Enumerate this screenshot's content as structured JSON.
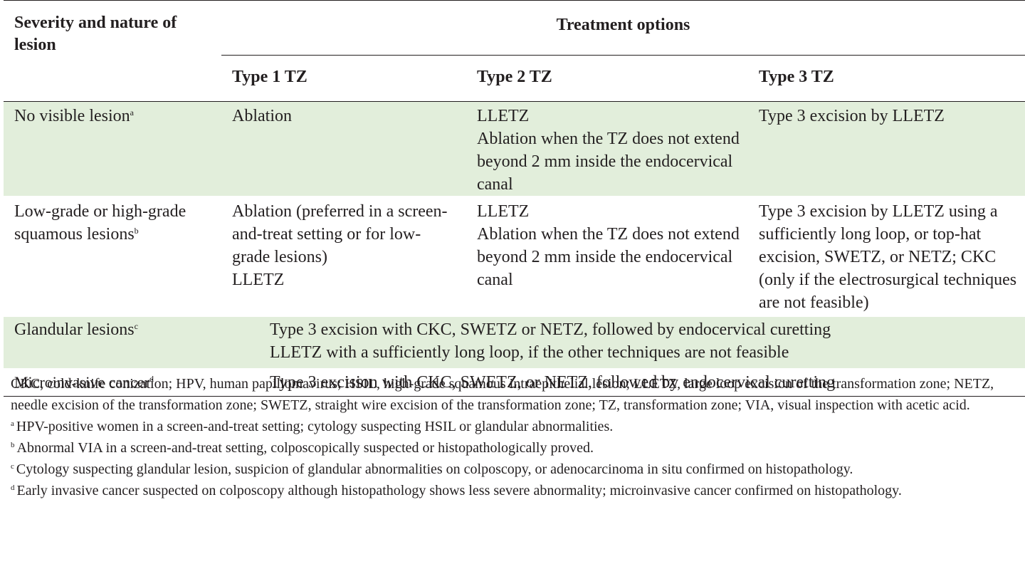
{
  "header": {
    "severity": "Severity and nature of lesion",
    "treatment": "Treatment options",
    "type1": "Type 1 TZ",
    "type2": "Type 2 TZ",
    "type3": "Type 3 TZ"
  },
  "rows": [
    {
      "lesion": "No visible lesion",
      "mark": "a",
      "type1": [
        "Ablation"
      ],
      "type2": [
        "LLETZ",
        "Ablation when the TZ does not extend beyond 2 mm inside the endocervical canal"
      ],
      "type3": [
        "Type 3 excision by LLETZ"
      ]
    },
    {
      "lesion": "Low-grade or high-grade squamous lesions",
      "mark": "b",
      "type1": [
        "Ablation (preferred in a screen-and-treat setting or for low-grade lesions)",
        "LLETZ"
      ],
      "type2": [
        "LLETZ",
        "Ablation when the TZ does not extend beyond 2 mm inside the endocervical canal"
      ],
      "type3": [
        "Type 3 excision by LLETZ using a sufficiently long loop, or top-hat excision, SWETZ, or NETZ; CKC (only if the electrosurgical techniques are not feasible)"
      ]
    },
    {
      "lesion": "Glandular lesions",
      "mark": "c",
      "all": [
        "Type 3 excision with CKC, SWETZ or NETZ, followed by endocervical curetting",
        "LLETZ with a sufficiently long loop, if the other techniques are not feasible"
      ]
    },
    {
      "lesion": "Microinvasive cancer",
      "mark": "d",
      "all": [
        "Type 3 excision with CKC, SWETZ, or NETZ, followed by endocervical curetting"
      ]
    }
  ],
  "notes": {
    "abbreviations": "CKC, cold-knife conization; HPV, human papillomavirus; HSIL, high-grade squamous intraepithelial lesion; LLETZ, large loop excision of the transformation zone; NETZ, needle excision of the transformation zone; SWETZ, straight wire excision of the transformation zone; TZ, transformation zone; VIA, visual inspection with acetic acid.",
    "footnotes": [
      {
        "mark": "a",
        "text": "HPV-positive women in a screen-and-treat setting; cytology suspecting HSIL or glandular abnormalities."
      },
      {
        "mark": "b",
        "text": "Abnormal VIA in a screen-and-treat setting, colposcopically suspected or histopathologically proved."
      },
      {
        "mark": "c",
        "text": "Cytology suspecting glandular lesion, suspicion of glandular abnormalities on colposcopy, or adenocarcinoma in situ confirmed on histopathology."
      },
      {
        "mark": "d",
        "text": "Early invasive cancer suspected on colposcopy although histopathology shows less severe abnormality; microinvasive cancer confirmed on histopathology."
      }
    ]
  },
  "colors": {
    "shade": "#e2eedb",
    "text": "#231f20"
  }
}
